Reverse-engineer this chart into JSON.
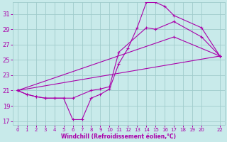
{
  "xlabel": "Windchill (Refroidissement éolien,°C)",
  "bg_color": "#c8eaea",
  "grid_color": "#a0cccc",
  "line_color": "#aa00aa",
  "xlim": [
    -0.5,
    22.5
  ],
  "ylim": [
    16.5,
    32.5
  ],
  "xticks": [
    0,
    1,
    2,
    3,
    4,
    5,
    6,
    7,
    8,
    9,
    10,
    11,
    12,
    13,
    14,
    15,
    16,
    17,
    18,
    19,
    20,
    22
  ],
  "yticks": [
    17,
    19,
    21,
    23,
    25,
    27,
    29,
    31
  ],
  "line1_x": [
    0,
    1,
    2,
    3,
    4,
    5,
    6,
    7,
    8,
    9,
    10,
    11,
    12,
    13,
    14,
    15,
    16,
    17,
    20,
    22
  ],
  "line1_y": [
    21,
    20.5,
    20.2,
    20.0,
    20.0,
    20.0,
    17.2,
    17.2,
    20.0,
    20.5,
    21.2,
    24.5,
    26.5,
    29.2,
    32.5,
    32.5,
    32.0,
    30.8,
    29.2,
    25.5
  ],
  "line2_x": [
    0,
    1,
    2,
    3,
    4,
    5,
    6,
    8,
    9,
    10,
    11,
    14,
    15,
    17,
    20,
    22
  ],
  "line2_y": [
    21,
    20.5,
    20.2,
    20.0,
    20.0,
    20.0,
    20.0,
    21.0,
    21.2,
    21.5,
    26.0,
    29.2,
    29.0,
    30.0,
    28.0,
    25.5
  ],
  "line3_x": [
    0,
    17,
    22
  ],
  "line3_y": [
    21.0,
    28.0,
    25.5
  ],
  "line4_x": [
    0,
    22
  ],
  "line4_y": [
    21.0,
    25.5
  ]
}
